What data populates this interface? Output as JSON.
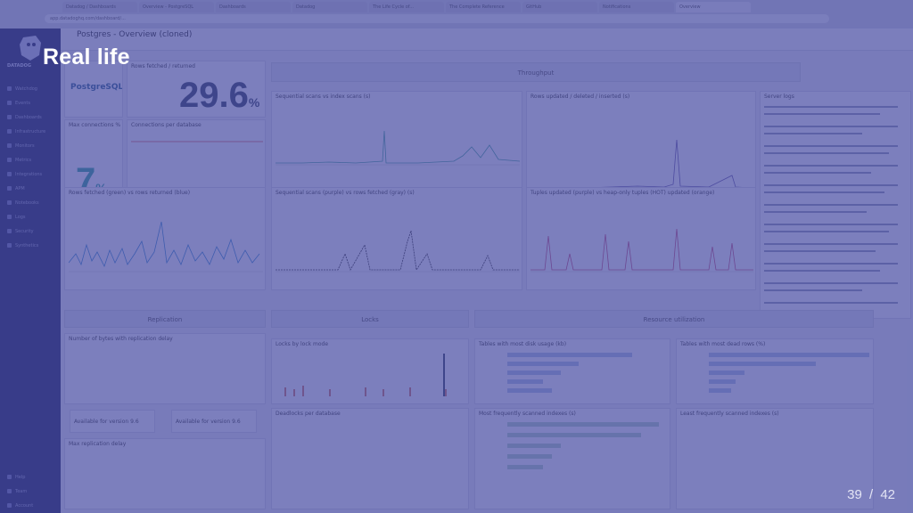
{
  "slide": {
    "title": "Real life",
    "page_current": "39",
    "page_sep": "/",
    "page_total": "42"
  },
  "browser": {
    "tabs": [
      "Datadog / Dashboards",
      "Overview - PostgreSQL",
      "Dashboards",
      "Datadog",
      "The Life Cycle of...",
      "The Complete Reference",
      "GitHub",
      "Notifications",
      "Overview",
      ""
    ],
    "url": "app.datadoghq.com/dashboard/..."
  },
  "sidebar": {
    "logo_text": "DATADOG",
    "items": [
      "Watchdog",
      "Events",
      "Dashboards",
      "Infrastructure",
      "Monitors",
      "Metrics",
      "Integrations",
      "APM",
      "Notebooks",
      "Logs",
      "Security",
      "Synthetics"
    ],
    "bottom_items": [
      "Help",
      "Team",
      "Account"
    ]
  },
  "dashboard": {
    "title": "Postgres - Overview (cloned)",
    "postgres_logo": "PostgreSQL",
    "widgets": {
      "rows_fetched_returned": {
        "title": "Rows fetched / returned",
        "value": "29.6",
        "unit": "%"
      },
      "max_connections": {
        "title": "Max connections %",
        "value": "7",
        "unit": "%"
      },
      "connections_per_db": {
        "title": "Connections per database"
      },
      "throughput_group": {
        "title": "Throughput"
      },
      "seq_scans_idx": {
        "title": "Sequential scans vs index scans (s)"
      },
      "rows_updated": {
        "title": "Rows updated / deleted / inserted (s)"
      },
      "rows_fetched_chart": {
        "title": "Rows fetched (green) vs rows returned (blue)"
      },
      "seq_scans_rows": {
        "title": "Sequential scans (purple) vs rows fetched (gray) (s)"
      },
      "tuples_updated": {
        "title": "Tuples updated (purple) vs heap-only tuples (HOT) updated (orange)"
      },
      "server_logs": {
        "title": "Server logs"
      },
      "replication_group": {
        "title": "Replication"
      },
      "locks_group": {
        "title": "Locks"
      },
      "resource_group": {
        "title": "Resource utilization"
      },
      "replication_delay": {
        "title": "Number of bytes with replication delay"
      },
      "locks_by_mode": {
        "title": "Locks by lock mode"
      },
      "disk_usage": {
        "title": "Tables with most disk usage (kb)"
      },
      "most_dead_rows": {
        "title": "Tables with most dead rows (%)"
      },
      "deadlocks": {
        "title": "Deadlocks per database"
      },
      "most_scanned_idx": {
        "title": "Most frequently scanned indexes (s)"
      },
      "least_scanned_idx": {
        "title": "Least frequently scanned indexes (s)"
      },
      "max_replication_delay": {
        "title": "Max replication delay"
      },
      "available_replica_1": {
        "title": "Available for version 9.6"
      },
      "available_replica_2": {
        "title": "Available for version 9.6"
      }
    }
  }
}
